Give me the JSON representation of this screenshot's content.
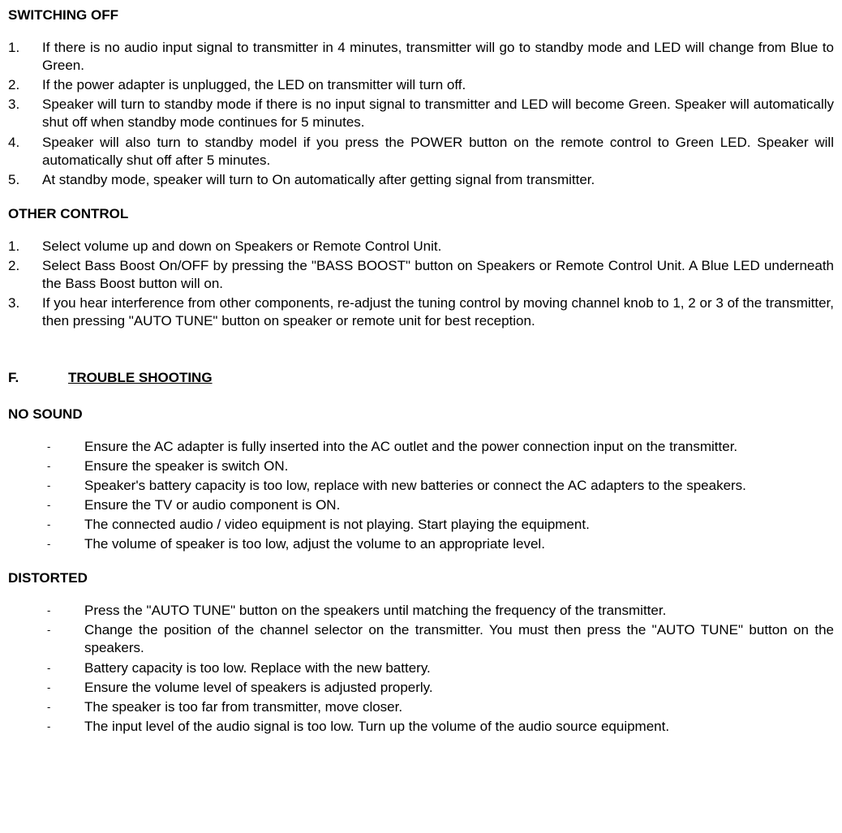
{
  "switching_off": {
    "heading": "SWITCHING OFF",
    "items": [
      "If there is no audio input signal to transmitter in 4 minutes, transmitter will go to standby mode and LED will change from Blue to Green.",
      "If the power adapter is unplugged, the LED on transmitter will turn off.",
      "Speaker will turn to standby mode if there is no input signal to transmitter and LED will become Green. Speaker will automatically shut off when standby mode continues for 5 minutes.",
      "Speaker will also turn to standby model if you press the POWER button on the remote control to Green LED.    Speaker will automatically shut off after 5 minutes.",
      "At standby mode, speaker will turn to On automatically after getting signal from transmitter."
    ]
  },
  "other_control": {
    "heading": "OTHER CONTROL",
    "items": [
      "Select volume up and down on Speakers or Remote Control Unit.",
      "Select Bass Boost On/OFF by pressing the \"BASS BOOST\" button on Speakers or Remote Control Unit.    A Blue LED underneath the Bass Boost button will on.",
      "If you hear interference from other components, re-adjust the tuning control by moving channel knob to 1, 2 or 3 of the transmitter, then pressing \"AUTO TUNE\" button on speaker or remote unit for best reception."
    ]
  },
  "troubleshooting": {
    "letter": "F.",
    "title": "TROUBLE SHOOTING",
    "no_sound": {
      "heading": "NO SOUND",
      "items": [
        "Ensure the AC adapter is fully inserted into the AC outlet and the power connection input on the transmitter.",
        "Ensure the speaker is switch ON.",
        "Speaker's battery capacity is too low, replace with new batteries or connect the AC adapters to the speakers.",
        "Ensure the TV or audio component is ON.",
        "The connected audio / video equipment is not playing.    Start playing the equipment.",
        "The volume of speaker is too low, adjust the volume to an appropriate level."
      ]
    },
    "distorted": {
      "heading": "DISTORTED",
      "items": [
        "Press the \"AUTO TUNE\" button on the speakers until matching the frequency of the transmitter.",
        "Change the position of the channel selector on the transmitter.   You must then press the \"AUTO TUNE\" button on the speakers.",
        "Battery capacity is too low.    Replace with the new battery.",
        "Ensure the volume level of speakers is adjusted properly.",
        "The speaker is too far from transmitter, move closer.",
        "The input level of the audio signal is too low.    Turn up the volume of the audio source equipment."
      ]
    }
  }
}
